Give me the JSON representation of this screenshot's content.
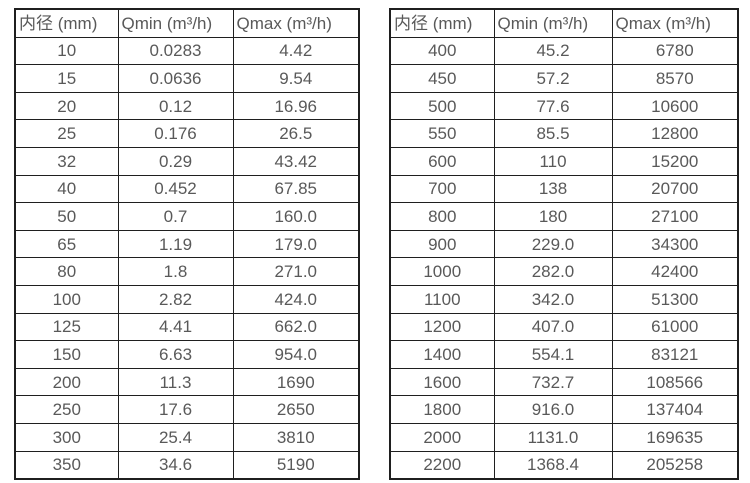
{
  "colors": {
    "background": "#ffffff",
    "table_border": "#1f1f1f",
    "text": "#595959"
  },
  "tables": [
    {
      "name": "flow-table-small-diameters",
      "headers": [
        "内径 (mm)",
        "Qmin (m³/h)",
        "Qmax (m³/h)"
      ],
      "rows": [
        [
          "10",
          "0.0283",
          "4.42"
        ],
        [
          "15",
          "0.0636",
          "9.54"
        ],
        [
          "20",
          "0.12",
          "16.96"
        ],
        [
          "25",
          "0.176",
          "26.5"
        ],
        [
          "32",
          "0.29",
          "43.42"
        ],
        [
          "40",
          "0.452",
          "67.85"
        ],
        [
          "50",
          "0.7",
          "160.0"
        ],
        [
          "65",
          "1.19",
          "179.0"
        ],
        [
          "80",
          "1.8",
          "271.0"
        ],
        [
          "100",
          "2.82",
          "424.0"
        ],
        [
          "125",
          "4.41",
          "662.0"
        ],
        [
          "150",
          "6.63",
          "954.0"
        ],
        [
          "200",
          "11.3",
          "1690"
        ],
        [
          "250",
          "17.6",
          "2650"
        ],
        [
          "300",
          "25.4",
          "3810"
        ],
        [
          "350",
          "34.6",
          "5190"
        ]
      ]
    },
    {
      "name": "flow-table-large-diameters",
      "headers": [
        "内径 (mm)",
        "Qmin (m³/h)",
        "Qmax (m³/h)"
      ],
      "rows": [
        [
          "400",
          "45.2",
          "6780"
        ],
        [
          "450",
          "57.2",
          "8570"
        ],
        [
          "500",
          "77.6",
          "10600"
        ],
        [
          "550",
          "85.5",
          "12800"
        ],
        [
          "600",
          "110",
          "15200"
        ],
        [
          "700",
          "138",
          "20700"
        ],
        [
          "800",
          "180",
          "27100"
        ],
        [
          "900",
          "229.0",
          "34300"
        ],
        [
          "1000",
          "282.0",
          "42400"
        ],
        [
          "1100",
          "342.0",
          "51300"
        ],
        [
          "1200",
          "407.0",
          "61000"
        ],
        [
          "1400",
          "554.1",
          "83121"
        ],
        [
          "1600",
          "732.7",
          "108566"
        ],
        [
          "1800",
          "916.0",
          "137404"
        ],
        [
          "2000",
          "1131.0",
          "169635"
        ],
        [
          "2200",
          "1368.4",
          "205258"
        ]
      ]
    }
  ]
}
